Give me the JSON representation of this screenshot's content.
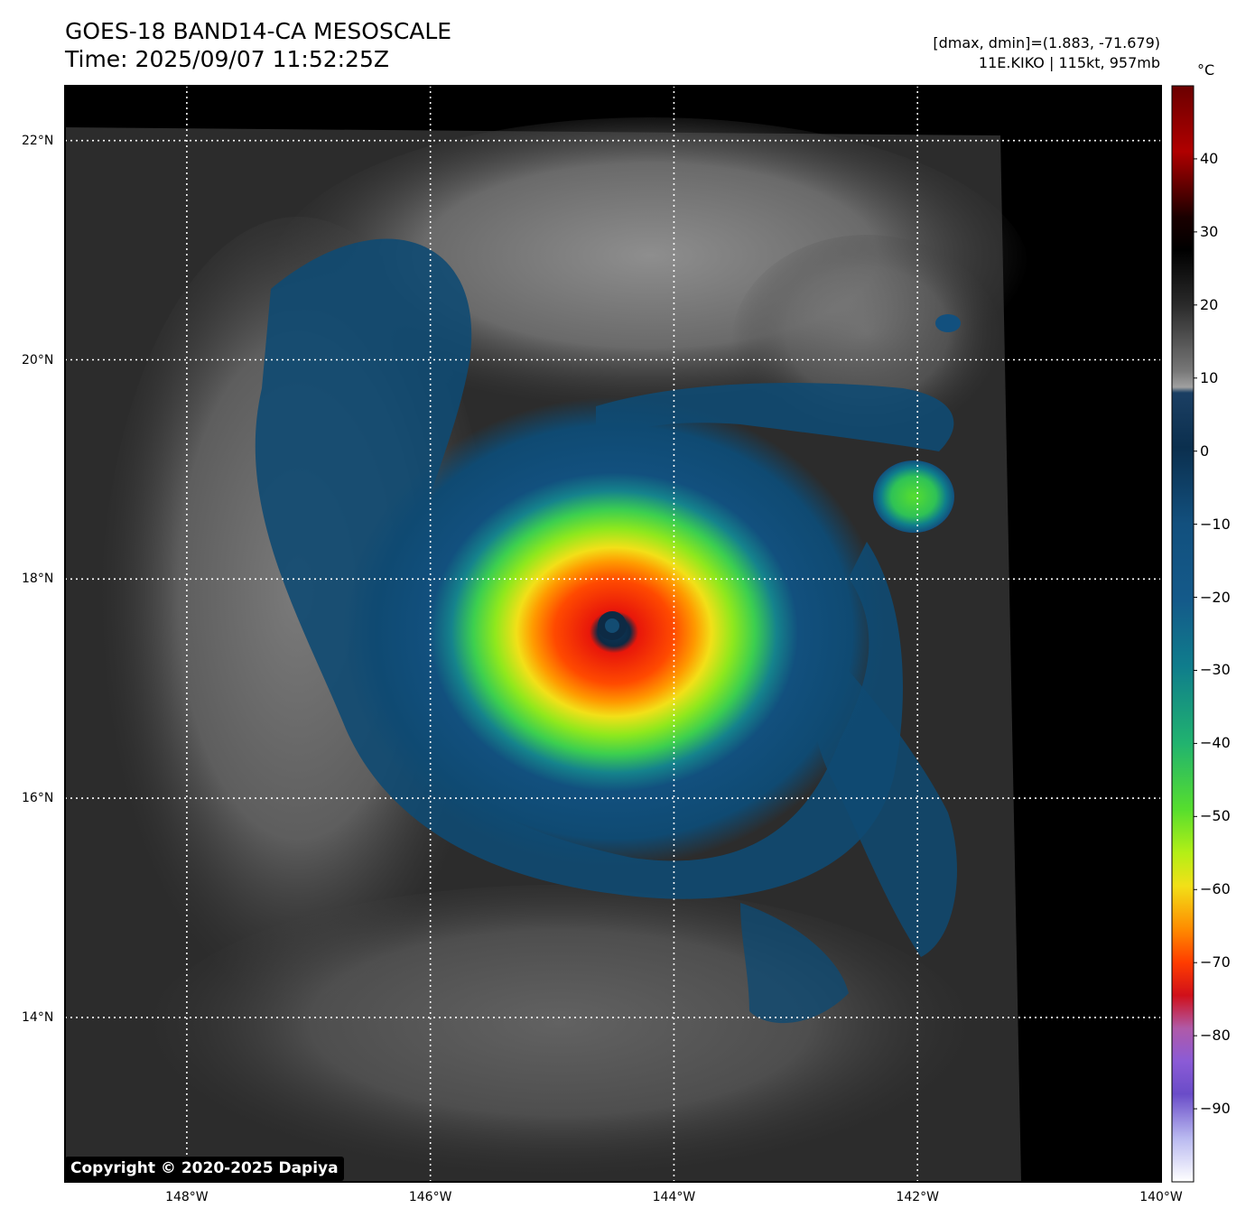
{
  "header": {
    "title_line1": "GOES-18 BAND14-CA MESOSCALE",
    "title_line2": "Time: 2025/09/07 11:52:25Z",
    "info_line1": "[dmax, dmin]=(1.883, -71.679)",
    "info_line2": "11E.KIKO | 115kt, 957mb"
  },
  "map": {
    "lon_range": [
      -149,
      -140
    ],
    "lat_range": [
      12.5,
      22.5
    ],
    "lat_ticks": [
      {
        "value": 22,
        "label": "22°N"
      },
      {
        "value": 20,
        "label": "20°N"
      },
      {
        "value": 18,
        "label": "18°N"
      },
      {
        "value": 16,
        "label": "16°N"
      },
      {
        "value": 14,
        "label": "14°N"
      }
    ],
    "lon_ticks": [
      {
        "value": -148,
        "label": "148°W"
      },
      {
        "value": -146,
        "label": "146°W"
      },
      {
        "value": -144,
        "label": "144°W"
      },
      {
        "value": -142,
        "label": "142°W"
      },
      {
        "value": -140,
        "label": "140°W"
      }
    ],
    "storm_center": {
      "lon": -144.1,
      "lat": 17.3
    }
  },
  "colorbar": {
    "unit": "°C",
    "range": [
      -100,
      50
    ],
    "ticks": [
      {
        "value": 40,
        "label": "40"
      },
      {
        "value": 30,
        "label": "30"
      },
      {
        "value": 20,
        "label": "20"
      },
      {
        "value": 10,
        "label": "10"
      },
      {
        "value": 0,
        "label": "0"
      },
      {
        "value": -10,
        "label": "−10"
      },
      {
        "value": -20,
        "label": "−20"
      },
      {
        "value": -30,
        "label": "−30"
      },
      {
        "value": -40,
        "label": "−40"
      },
      {
        "value": -50,
        "label": "−50"
      },
      {
        "value": -60,
        "label": "−60"
      },
      {
        "value": -70,
        "label": "−70"
      },
      {
        "value": -80,
        "label": "−80"
      },
      {
        "value": -90,
        "label": "−90"
      }
    ],
    "colors": {
      "hot_dark_red": "#6b0000",
      "black": "#000000",
      "gray": "#9a9a9a",
      "dark_blue": "#0b3a5c",
      "blue": "#13557e",
      "teal": "#0f7d8c",
      "green": "#27c36a",
      "lime": "#7ee81d",
      "yellow": "#f2e018",
      "orange": "#ff8a00",
      "red": "#e8170a",
      "purple": "#8b5bd6",
      "white": "#ffffff"
    }
  },
  "copyright": "Copyright © 2020-2025 Dapiya"
}
